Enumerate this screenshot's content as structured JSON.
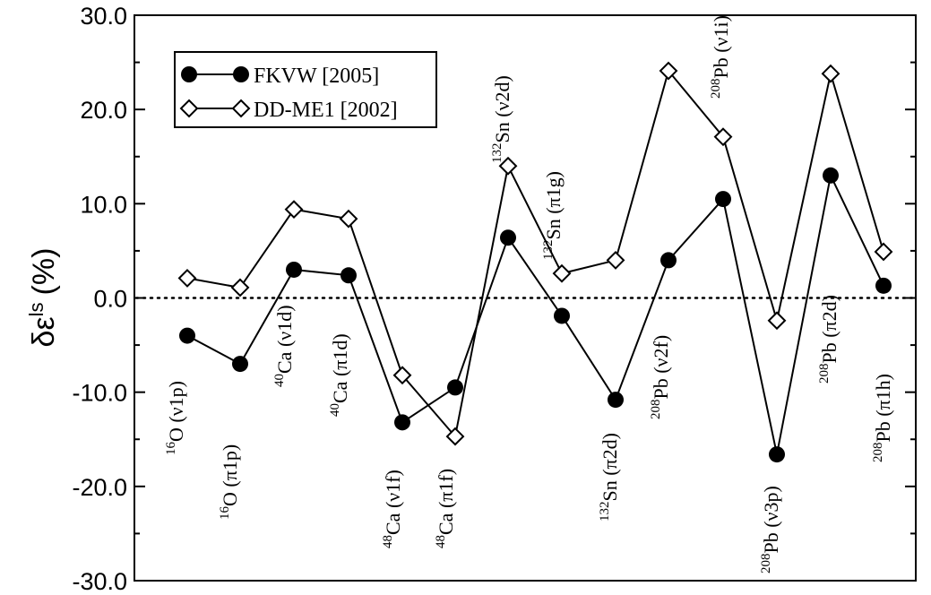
{
  "chart_data": {
    "type": "line",
    "title": "",
    "xlabel": "",
    "ylabel": {
      "base": "δε",
      "superscript": "ls",
      "unit": "(%)"
    },
    "ylim": [
      -30,
      30
    ],
    "yticks": [
      "-30.0",
      "-20.0",
      "-10.0",
      "0.0",
      "10.0",
      "20.0",
      "30.0"
    ],
    "zero_line": "dotted",
    "legend_position": "top-left",
    "x": [
      1,
      2,
      3,
      4,
      5,
      6,
      7,
      8,
      9,
      10,
      11,
      12,
      13,
      14
    ],
    "point_labels": [
      {
        "sup": "16",
        "main": "O (ν1p)"
      },
      {
        "sup": "16",
        "main": "O (π1p)"
      },
      {
        "sup": "40",
        "main": "Ca (ν1d)"
      },
      {
        "sup": "40",
        "main": "Ca (π1d)"
      },
      {
        "sup": "48",
        "main": "Ca (ν1f)"
      },
      {
        "sup": "48",
        "main": "Ca (π1f)"
      },
      {
        "sup": "132",
        "main": "Sn (ν2d)"
      },
      {
        "sup": "132",
        "main": "Sn (π1g)"
      },
      {
        "sup": "132",
        "main": "Sn (π2d)"
      },
      {
        "sup": "208",
        "main": "Pb (ν2f)"
      },
      {
        "sup": "208",
        "main": "Pb (ν1i)"
      },
      {
        "sup": "208",
        "main": "Pb (ν3p)"
      },
      {
        "sup": "208",
        "main": "Pb (π2d)"
      },
      {
        "sup": "208",
        "main": "Pb (π1h)"
      }
    ],
    "series": [
      {
        "name": "FKVW [2005]",
        "marker": "filled-circle",
        "color": "#000000",
        "values": [
          -4.0,
          -7.0,
          3.0,
          2.4,
          -13.2,
          -9.5,
          6.4,
          -1.9,
          -10.8,
          4.0,
          10.5,
          -16.6,
          13.0,
          1.3
        ]
      },
      {
        "name": "DD-ME1 [2002]",
        "marker": "open-diamond",
        "color": "#000000",
        "values": [
          2.1,
          1.1,
          9.4,
          8.4,
          -8.2,
          -14.7,
          14.0,
          2.6,
          4.0,
          24.1,
          17.1,
          -2.4,
          23.8,
          4.9
        ]
      }
    ]
  }
}
